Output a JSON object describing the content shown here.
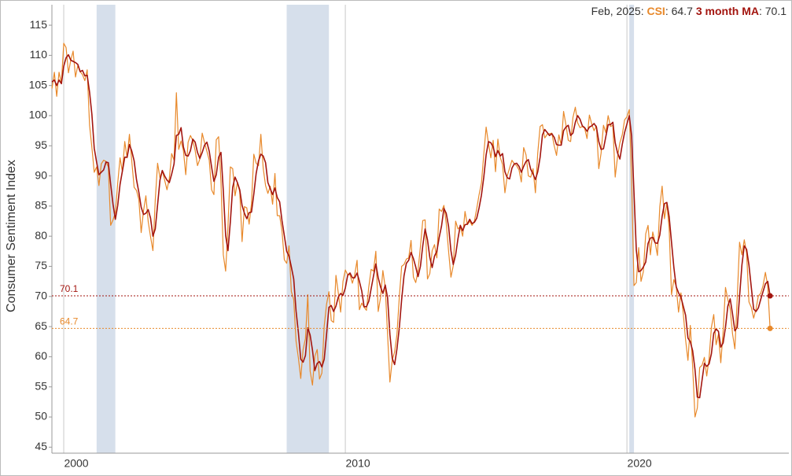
{
  "chart_data": {
    "type": "line",
    "y_label": "Consumer Sentiment Index",
    "readout_date": "Feb, 2025",
    "xlim": [
      1999.58,
      2025.75
    ],
    "xticks": [
      2000,
      2010,
      2020
    ],
    "ylim": [
      44,
      118.4
    ],
    "yticks": [
      45,
      50,
      55,
      60,
      65,
      70,
      75,
      80,
      85,
      90,
      95,
      100,
      105,
      110,
      115
    ],
    "shaded_regions": [
      [
        2001.167,
        2001.833
      ],
      [
        2007.917,
        2009.417
      ],
      [
        2020.083,
        2020.25
      ]
    ],
    "x": [
      1999.583,
      1999.667,
      1999.75,
      1999.833,
      1999.917,
      2000,
      2000.083,
      2000.167,
      2000.25,
      2000.333,
      2000.417,
      2000.5,
      2000.583,
      2000.667,
      2000.75,
      2000.833,
      2000.917,
      2001,
      2001.083,
      2001.167,
      2001.25,
      2001.333,
      2001.417,
      2001.5,
      2001.583,
      2001.667,
      2001.75,
      2001.833,
      2001.917,
      2002,
      2002.083,
      2002.167,
      2002.25,
      2002.333,
      2002.417,
      2002.5,
      2002.583,
      2002.667,
      2002.75,
      2002.833,
      2002.917,
      2003,
      2003.083,
      2003.167,
      2003.25,
      2003.333,
      2003.417,
      2003.5,
      2003.583,
      2003.667,
      2003.75,
      2003.833,
      2003.917,
      2004,
      2004.083,
      2004.167,
      2004.25,
      2004.333,
      2004.417,
      2004.5,
      2004.583,
      2004.667,
      2004.75,
      2004.833,
      2004.917,
      2005,
      2005.083,
      2005.167,
      2005.25,
      2005.333,
      2005.417,
      2005.5,
      2005.583,
      2005.667,
      2005.75,
      2005.833,
      2005.917,
      2006,
      2006.083,
      2006.167,
      2006.25,
      2006.333,
      2006.417,
      2006.5,
      2006.583,
      2006.667,
      2006.75,
      2006.833,
      2006.917,
      2007,
      2007.083,
      2007.167,
      2007.25,
      2007.333,
      2007.417,
      2007.5,
      2007.583,
      2007.667,
      2007.75,
      2007.833,
      2007.917,
      2008,
      2008.083,
      2008.167,
      2008.25,
      2008.333,
      2008.417,
      2008.5,
      2008.583,
      2008.667,
      2008.75,
      2008.833,
      2008.917,
      2009,
      2009.083,
      2009.167,
      2009.25,
      2009.333,
      2009.417,
      2009.5,
      2009.583,
      2009.667,
      2009.75,
      2009.833,
      2009.917,
      2010,
      2010.083,
      2010.167,
      2010.25,
      2010.333,
      2010.417,
      2010.5,
      2010.583,
      2010.667,
      2010.75,
      2010.833,
      2010.917,
      2011,
      2011.083,
      2011.167,
      2011.25,
      2011.333,
      2011.417,
      2011.5,
      2011.583,
      2011.667,
      2011.75,
      2011.833,
      2011.917,
      2012,
      2012.083,
      2012.167,
      2012.25,
      2012.333,
      2012.417,
      2012.5,
      2012.583,
      2012.667,
      2012.75,
      2012.833,
      2012.917,
      2013,
      2013.083,
      2013.167,
      2013.25,
      2013.333,
      2013.417,
      2013.5,
      2013.583,
      2013.667,
      2013.75,
      2013.833,
      2013.917,
      2014,
      2014.083,
      2014.167,
      2014.25,
      2014.333,
      2014.417,
      2014.5,
      2014.583,
      2014.667,
      2014.75,
      2014.833,
      2014.917,
      2015,
      2015.083,
      2015.167,
      2015.25,
      2015.333,
      2015.417,
      2015.5,
      2015.583,
      2015.667,
      2015.75,
      2015.833,
      2015.917,
      2016,
      2016.083,
      2016.167,
      2016.25,
      2016.333,
      2016.417,
      2016.5,
      2016.583,
      2016.667,
      2016.75,
      2016.833,
      2016.917,
      2017,
      2017.083,
      2017.167,
      2017.25,
      2017.333,
      2017.417,
      2017.5,
      2017.583,
      2017.667,
      2017.75,
      2017.833,
      2017.917,
      2018,
      2018.083,
      2018.167,
      2018.25,
      2018.333,
      2018.417,
      2018.5,
      2018.583,
      2018.667,
      2018.75,
      2018.833,
      2018.917,
      2019,
      2019.083,
      2019.167,
      2019.25,
      2019.333,
      2019.417,
      2019.5,
      2019.583,
      2019.667,
      2019.75,
      2019.833,
      2019.917,
      2020,
      2020.083,
      2020.167,
      2020.25,
      2020.333,
      2020.417,
      2020.5,
      2020.583,
      2020.667,
      2020.75,
      2020.833,
      2020.917,
      2021,
      2021.083,
      2021.167,
      2021.25,
      2021.333,
      2021.417,
      2021.5,
      2021.583,
      2021.667,
      2021.75,
      2021.833,
      2021.917,
      2022,
      2022.083,
      2022.167,
      2022.25,
      2022.333,
      2022.417,
      2022.5,
      2022.583,
      2022.667,
      2022.75,
      2022.833,
      2022.917,
      2023,
      2023.083,
      2023.167,
      2023.25,
      2023.333,
      2023.417,
      2023.5,
      2023.583,
      2023.667,
      2023.75,
      2023.833,
      2023.917,
      2024,
      2024.083,
      2024.167,
      2024.25,
      2024.333,
      2024.417,
      2024.5,
      2024.583,
      2024.667,
      2024.75,
      2024.833,
      2024.917,
      2025,
      2025.083
    ],
    "series": [
      {
        "name": "CSI",
        "color": "#e8892b",
        "width": 1.2,
        "values": [
          104.5,
          107.2,
          103.2,
          107.2,
          105.4,
          112.0,
          111.3,
          107.1,
          109.2,
          110.7,
          106.4,
          108.3,
          107.3,
          106.8,
          105.8,
          107.6,
          98.4,
          94.7,
          90.6,
          91.5,
          88.4,
          92.0,
          92.6,
          92.4,
          91.5,
          81.8,
          82.7,
          83.9,
          88.8,
          93.0,
          90.7,
          95.7,
          93.0,
          96.9,
          92.4,
          88.1,
          87.6,
          86.1,
          80.6,
          84.2,
          86.7,
          82.4,
          79.9,
          77.6,
          86.0,
          92.1,
          89.7,
          90.9,
          89.3,
          87.7,
          89.6,
          93.7,
          92.6,
          103.8,
          94.4,
          95.8,
          94.2,
          90.2,
          95.6,
          96.7,
          95.9,
          94.2,
          91.7,
          92.8,
          97.1,
          95.5,
          94.1,
          92.6,
          87.7,
          86.9,
          96.0,
          96.5,
          89.1,
          76.9,
          74.2,
          81.6,
          91.5,
          91.2,
          86.7,
          88.9,
          87.4,
          79.1,
          84.9,
          84.7,
          82.0,
          85.4,
          93.6,
          92.1,
          91.7,
          96.9,
          91.3,
          88.4,
          87.1,
          88.3,
          85.3,
          90.4,
          83.4,
          83.4,
          80.9,
          76.1,
          75.5,
          78.4,
          70.8,
          69.5,
          62.6,
          59.8,
          56.4,
          61.2,
          63.0,
          70.3,
          57.6,
          55.3,
          60.1,
          61.2,
          56.3,
          57.3,
          65.1,
          68.7,
          70.8,
          66.0,
          65.7,
          73.5,
          70.6,
          67.4,
          72.5,
          74.4,
          73.6,
          73.6,
          72.2,
          73.6,
          76.0,
          67.8,
          68.9,
          68.2,
          67.7,
          71.6,
          74.5,
          74.2,
          77.5,
          67.5,
          69.8,
          74.3,
          71.5,
          63.7,
          55.8,
          59.5,
          60.8,
          63.7,
          69.9,
          75.0,
          75.3,
          76.2,
          76.4,
          79.3,
          73.2,
          72.3,
          74.3,
          78.3,
          82.6,
          82.7,
          72.9,
          73.8,
          77.6,
          78.6,
          76.4,
          84.5,
          84.1,
          85.1,
          82.1,
          77.5,
          73.2,
          75.1,
          82.5,
          81.2,
          81.6,
          80.0,
          84.1,
          81.9,
          82.5,
          81.8,
          82.5,
          84.6,
          86.9,
          88.8,
          93.6,
          98.1,
          95.4,
          93.0,
          95.9,
          90.7,
          96.1,
          93.1,
          91.9,
          87.2,
          90.0,
          91.3,
          92.6,
          92.0,
          91.7,
          91.0,
          89.0,
          94.7,
          93.5,
          90.0,
          89.8,
          91.2,
          87.2,
          93.8,
          98.2,
          98.5,
          96.3,
          96.9,
          97.0,
          97.1,
          95.0,
          93.4,
          96.8,
          95.1,
          100.7,
          98.5,
          95.9,
          95.7,
          99.7,
          101.4,
          98.8,
          98.0,
          98.2,
          97.9,
          96.2,
          100.1,
          98.6,
          97.5,
          98.3,
          91.2,
          93.8,
          98.4,
          97.2,
          100.0,
          98.2,
          98.4,
          89.8,
          93.2,
          95.5,
          96.8,
          99.3,
          99.8,
          101.0,
          89.1,
          71.8,
          72.3,
          78.1,
          72.5,
          74.1,
          80.4,
          81.8,
          76.9,
          80.7,
          79.0,
          76.8,
          84.9,
          88.3,
          82.9,
          85.5,
          81.2,
          70.3,
          72.8,
          71.7,
          67.4,
          70.6,
          67.2,
          62.8,
          59.4,
          65.2,
          58.4,
          50.0,
          51.5,
          58.2,
          58.6,
          59.9,
          56.8,
          59.7,
          64.9,
          67.0,
          62.0,
          63.7,
          59.0,
          64.2,
          71.5,
          69.5,
          67.9,
          63.8,
          61.3,
          69.7,
          79.0,
          76.9,
          79.4,
          77.2,
          69.1,
          68.2,
          66.4,
          67.9,
          70.1,
          70.5,
          71.8,
          74.0,
          71.7,
          64.7
        ]
      },
      {
        "name": "3 month MA",
        "color": "#a3150f",
        "width": 1.6,
        "values": [
          105.6,
          105.9,
          105.0,
          105.9,
          105.3,
          108.2,
          109.6,
          110.1,
          109.2,
          109.0,
          108.8,
          108.5,
          107.3,
          107.5,
          106.6,
          106.7,
          103.9,
          100.2,
          94.6,
          92.3,
          90.2,
          90.6,
          91.0,
          92.3,
          92.2,
          88.6,
          85.3,
          82.8,
          85.1,
          88.6,
          90.8,
          93.1,
          93.1,
          95.2,
          94.1,
          92.5,
          89.4,
          87.3,
          84.8,
          83.6,
          83.8,
          84.4,
          83.0,
          80.0,
          81.2,
          85.2,
          89.3,
          90.9,
          90.0,
          89.3,
          88.9,
          90.3,
          92.0,
          96.7,
          96.9,
          98.0,
          94.8,
          93.4,
          93.3,
          94.2,
          96.1,
          95.6,
          93.9,
          92.9,
          93.9,
          95.1,
          95.6,
          94.1,
          91.5,
          89.1,
          90.2,
          93.1,
          93.9,
          87.5,
          80.1,
          77.6,
          82.4,
          88.1,
          89.8,
          88.9,
          87.7,
          85.1,
          83.8,
          82.9,
          83.9,
          84.0,
          87.0,
          90.4,
          92.5,
          93.6,
          93.3,
          92.2,
          88.9,
          87.9,
          86.9,
          88.0,
          86.4,
          85.7,
          82.6,
          80.1,
          77.5,
          76.7,
          74.9,
          72.9,
          67.6,
          64.0,
          59.6,
          59.1,
          60.2,
          64.8,
          63.6,
          61.1,
          57.7,
          58.9,
          59.2,
          58.3,
          59.6,
          63.7,
          68.2,
          68.5,
          67.5,
          68.4,
          69.9,
          70.5,
          70.2,
          71.4,
          73.5,
          73.9,
          73.1,
          73.1,
          73.9,
          72.5,
          70.9,
          68.3,
          68.3,
          69.2,
          71.3,
          73.4,
          75.4,
          73.1,
          71.6,
          70.5,
          71.9,
          69.8,
          63.7,
          59.7,
          58.7,
          61.3,
          64.8,
          69.5,
          73.4,
          75.5,
          76.0,
          77.3,
          76.3,
          74.9,
          73.3,
          75.0,
          78.4,
          81.2,
          79.4,
          76.5,
          74.8,
          76.7,
          77.5,
          79.8,
          81.7,
          84.6,
          83.8,
          81.6,
          77.6,
          75.3,
          76.9,
          79.6,
          81.8,
          80.9,
          81.9,
          82.0,
          82.8,
          82.1,
          82.3,
          83.0,
          84.7,
          86.8,
          89.8,
          93.5,
          95.7,
          95.5,
          94.8,
          93.2,
          94.2,
          93.3,
          93.7,
          90.7,
          89.7,
          89.5,
          91.3,
          92.0,
          92.1,
          91.6,
          90.6,
          91.6,
          92.4,
          92.7,
          91.1,
          90.3,
          89.4,
          90.7,
          93.1,
          96.8,
          97.7,
          97.2,
          96.7,
          97.0,
          96.4,
          95.2,
          95.1,
          95.1,
          97.5,
          98.1,
          98.4,
          96.7,
          97.1,
          98.9,
          100.0,
          99.4,
          98.3,
          98.0,
          97.4,
          98.1,
          98.3,
          98.7,
          98.1,
          95.7,
          94.4,
          94.5,
          96.5,
          98.5,
          98.5,
          98.9,
          95.5,
          93.8,
          92.8,
          95.2,
          97.2,
          98.6,
          100.0,
          96.6,
          87.3,
          77.7,
          74.1,
          74.3,
          74.9,
          75.7,
          78.8,
          79.7,
          79.8,
          78.9,
          78.8,
          80.2,
          83.3,
          85.4,
          85.6,
          83.2,
          79.0,
          74.8,
          71.6,
          70.6,
          69.9,
          68.4,
          66.9,
          63.1,
          62.5,
          61.0,
          57.9,
          53.3,
          53.2,
          56.1,
          58.9,
          58.4,
          58.8,
          60.5,
          63.9,
          64.6,
          64.2,
          61.6,
          62.3,
          64.9,
          68.4,
          69.6,
          67.1,
          64.3,
          64.9,
          70.0,
          75.2,
          78.4,
          77.8,
          75.2,
          71.5,
          67.9,
          67.5,
          68.1,
          69.5,
          70.8,
          72.1,
          72.5,
          70.1
        ]
      }
    ]
  }
}
